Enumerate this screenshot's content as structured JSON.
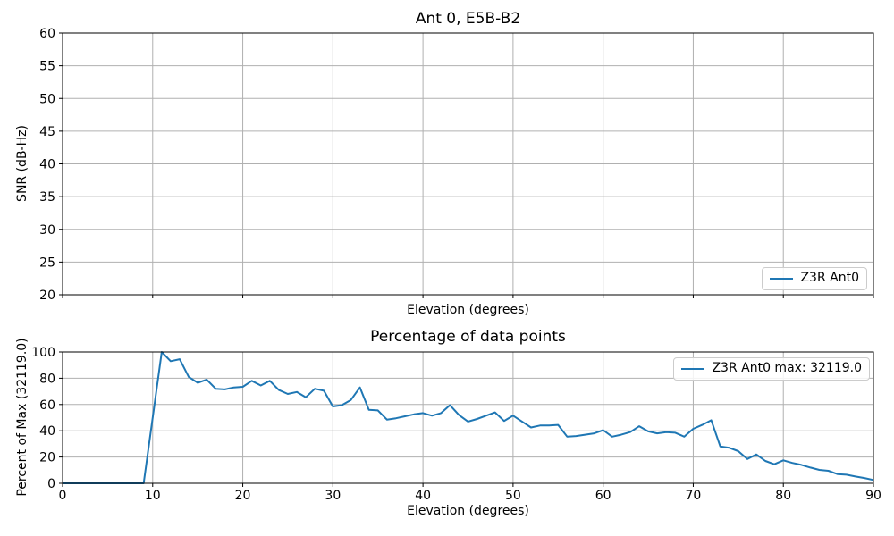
{
  "colors": {
    "series_blue": "#1f77b4",
    "grid": "#b0b0b0",
    "spine": "#000000",
    "legend_border": "#cccccc",
    "background": "#ffffff"
  },
  "chart_data": [
    {
      "type": "line",
      "title": "Ant 0, E5B-B2",
      "xlabel": "Elevation (degrees)",
      "ylabel": "SNR (dB-Hz)",
      "xlim": [
        0,
        90
      ],
      "ylim": [
        20,
        60
      ],
      "xticks": [
        0,
        10,
        20,
        30,
        40,
        50,
        60,
        70,
        80,
        90
      ],
      "x_tick_labels_visible": false,
      "yticks": [
        20,
        25,
        30,
        35,
        40,
        45,
        50,
        55,
        60
      ],
      "grid": true,
      "legend": {
        "position": "lower right",
        "entries": [
          {
            "label": "Z3R Ant0",
            "color": "#1f77b4"
          }
        ]
      },
      "series": [
        {
          "name": "Z3R Ant0",
          "color": "#1f77b4",
          "x": [],
          "y": [],
          "note": "no data points visible in plot area"
        }
      ]
    },
    {
      "type": "line",
      "title": "Percentage of data points",
      "xlabel": "Elevation (degrees)",
      "ylabel": "Percent of Max (32119.0)",
      "max_value": 32119.0,
      "xlim": [
        0,
        90
      ],
      "ylim": [
        0,
        100
      ],
      "xticks": [
        0,
        10,
        20,
        30,
        40,
        50,
        60,
        70,
        80,
        90
      ],
      "x_tick_labels_visible": true,
      "yticks": [
        0,
        20,
        40,
        60,
        80,
        100
      ],
      "grid": true,
      "legend": {
        "position": "upper right",
        "entries": [
          {
            "label": "Z3R Ant0 max: 32119.0",
            "color": "#1f77b4"
          }
        ]
      },
      "series": [
        {
          "name": "Z3R Ant0",
          "color": "#1f77b4",
          "x": [
            0,
            1,
            2,
            3,
            4,
            5,
            6,
            7,
            8,
            9,
            10,
            11,
            12,
            13,
            14,
            15,
            16,
            17,
            18,
            19,
            20,
            21,
            22,
            23,
            24,
            25,
            26,
            27,
            28,
            29,
            30,
            31,
            32,
            33,
            34,
            35,
            36,
            37,
            38,
            39,
            40,
            41,
            42,
            43,
            44,
            45,
            46,
            47,
            48,
            49,
            50,
            51,
            52,
            53,
            54,
            55,
            56,
            57,
            58,
            59,
            60,
            61,
            62,
            63,
            64,
            65,
            66,
            67,
            68,
            69,
            70,
            71,
            72,
            73,
            74,
            75,
            76,
            77,
            78,
            79,
            80,
            81,
            82,
            83,
            84,
            85,
            86,
            87,
            88,
            89,
            90
          ],
          "y": [
            0,
            0,
            0,
            0,
            0,
            0,
            0,
            0,
            0,
            0,
            50,
            100,
            93,
            94.5,
            81,
            76.5,
            79,
            72,
            71.5,
            73,
            73.5,
            78,
            74.5,
            78,
            71,
            68,
            69.5,
            65.5,
            72,
            70.5,
            58.5,
            59.5,
            63.5,
            73,
            56,
            55.5,
            48.5,
            49.5,
            51,
            52.5,
            53.5,
            51.5,
            53.5,
            59.5,
            52,
            47,
            49,
            51.5,
            54,
            47.5,
            51.5,
            47,
            42.5,
            44,
            44,
            44.5,
            35.5,
            36,
            37,
            38,
            40.5,
            35.5,
            37,
            39,
            43.5,
            39.5,
            38,
            39,
            38.5,
            35.5,
            41.5,
            44.5,
            48,
            28,
            27,
            24.5,
            18.5,
            22,
            17,
            14.5,
            17.5,
            15.5,
            14,
            12,
            10.2,
            9.5,
            7,
            6.5,
            5.2,
            4,
            2.5
          ]
        }
      ]
    }
  ]
}
